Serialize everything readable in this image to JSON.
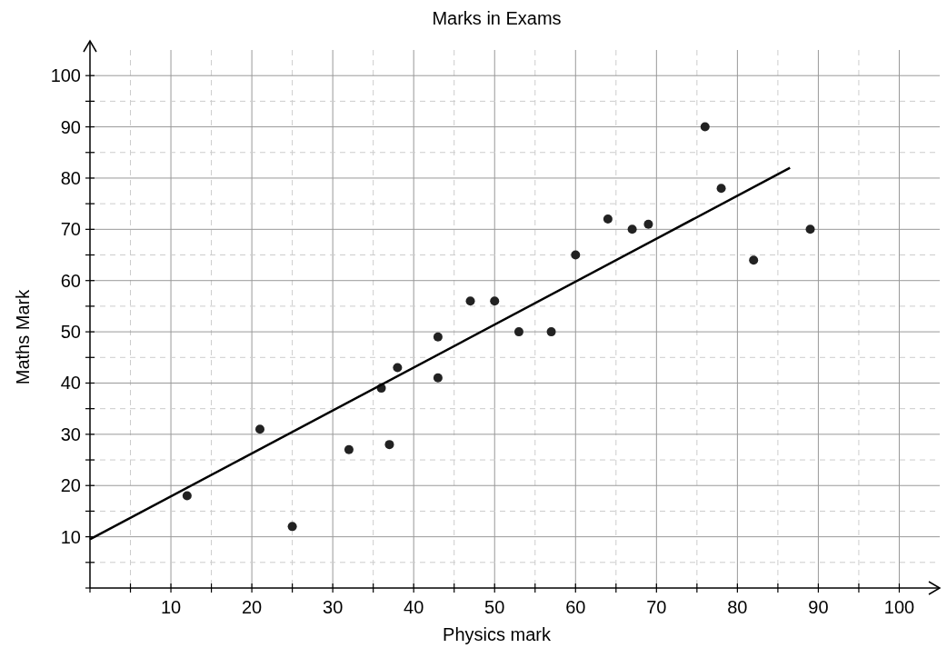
{
  "chart_data": {
    "type": "scatter",
    "title": "Marks in Exams",
    "xlabel": "Physics mark",
    "ylabel": "Maths Mark",
    "xlim": [
      0,
      105
    ],
    "ylim": [
      0,
      105
    ],
    "xticks": [
      {
        "value": 0,
        "label": null
      },
      {
        "value": 5,
        "label": null
      },
      10,
      {
        "value": 15,
        "label": null
      },
      20,
      {
        "value": 25,
        "label": null
      },
      30,
      {
        "value": 35,
        "label": null
      },
      40,
      {
        "value": 45,
        "label": null
      },
      50,
      {
        "value": 55,
        "label": null
      },
      60,
      {
        "value": 65,
        "label": null
      },
      70,
      {
        "value": 75,
        "label": null
      },
      80,
      {
        "value": 85,
        "label": null
      },
      90,
      {
        "value": 95,
        "label": null
      },
      100
    ],
    "yticks": [
      {
        "value": 0,
        "label": null
      },
      {
        "value": 5,
        "label": null
      },
      10,
      {
        "value": 15,
        "label": null
      },
      20,
      {
        "value": 25,
        "label": null
      },
      30,
      {
        "value": 35,
        "label": null
      },
      40,
      {
        "value": 45,
        "label": null
      },
      50,
      {
        "value": 55,
        "label": null
      },
      60,
      {
        "value": 65,
        "label": null
      },
      70,
      {
        "value": 75,
        "label": null
      },
      80,
      {
        "value": 85,
        "label": null
      },
      90,
      {
        "value": 95,
        "label": null
      },
      100
    ],
    "grid": true,
    "series": [
      {
        "color": "#222222",
        "marker": "circle",
        "x": [
          12,
          21,
          25,
          32,
          36,
          37,
          38,
          43,
          43,
          47,
          50,
          53,
          57,
          60,
          64,
          67,
          69,
          76,
          78,
          82,
          89
        ],
        "values": [
          18,
          31,
          12,
          27,
          39,
          28,
          43,
          49,
          41,
          56,
          56,
          50,
          50,
          65,
          72,
          70,
          71,
          90,
          78,
          64,
          70
        ]
      },
      {
        "type": "line",
        "color": "#000000",
        "marker": "none",
        "line_style": "solid",
        "x": [
          0,
          86.5
        ],
        "values": [
          9.5,
          82
        ]
      }
    ]
  }
}
